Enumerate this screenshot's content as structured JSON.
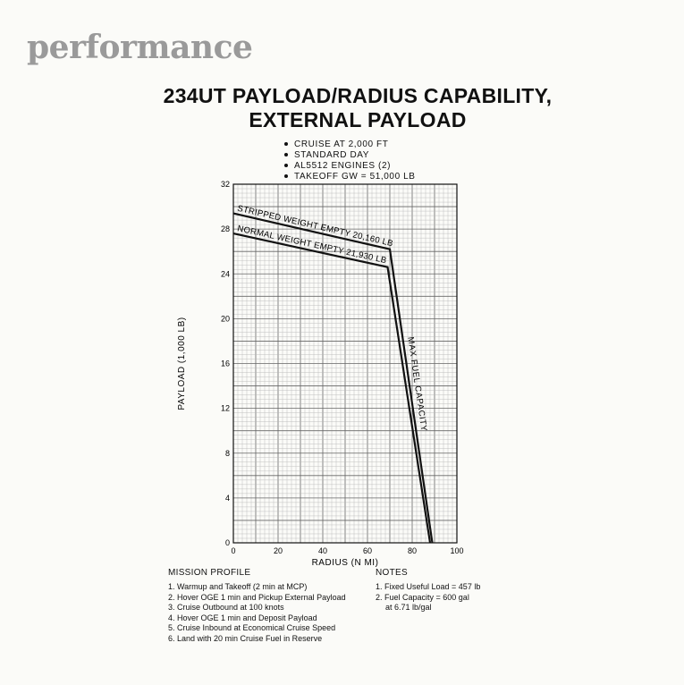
{
  "brand": "performance",
  "title_line1": "234UT PAYLOAD/RADIUS CAPABILITY,",
  "title_line2": "EXTERNAL PAYLOAD",
  "conditions": [
    "CRUISE AT 2,000 FT",
    "STANDARD DAY",
    "AL5512 ENGINES (2)",
    "TAKEOFF GW = 51,000 LB"
  ],
  "mission_profile": {
    "heading": "MISSION PROFILE",
    "items": [
      "1. Warmup and Takeoff (2 min at MCP)",
      "2. Hover OGE 1 min and Pickup External Payload",
      "3. Cruise Outbound at 100 knots",
      "4. Hover OGE 1 min and Deposit Payload",
      "5. Cruise Inbound at Economical Cruise Speed",
      "6. Land with 20 min Cruise Fuel in Reserve"
    ]
  },
  "notes": {
    "heading": "NOTES",
    "items": [
      "1. Fixed Useful Load = 457 lb",
      "2. Fuel Capacity = 600 gal",
      "at 6.71 lb/gal"
    ]
  },
  "chart_data": {
    "type": "line",
    "xlabel": "RADIUS (N MI)",
    "ylabel": "PAYLOAD (1,000 LB)",
    "xlim": [
      0,
      100
    ],
    "ylim": [
      0,
      32
    ],
    "x_ticks": [
      "0",
      "20",
      "40",
      "60",
      "80",
      "100"
    ],
    "y_ticks": [
      "0",
      "4",
      "8",
      "12",
      "16",
      "20",
      "24",
      "28",
      "32"
    ],
    "grid": true,
    "series": [
      {
        "name": "STRIPPED WEIGHT EMPTY 20,160 LB",
        "points": [
          [
            0,
            29.4
          ],
          [
            70,
            26.2
          ],
          [
            89,
            0
          ]
        ]
      },
      {
        "name": "NORMAL WEIGHT EMPTY 21,930 LB",
        "points": [
          [
            0,
            27.6
          ],
          [
            69,
            24.6
          ],
          [
            88,
            0
          ]
        ]
      }
    ],
    "annotations": [
      {
        "text": "MAX FUEL CAPACITY"
      }
    ]
  }
}
